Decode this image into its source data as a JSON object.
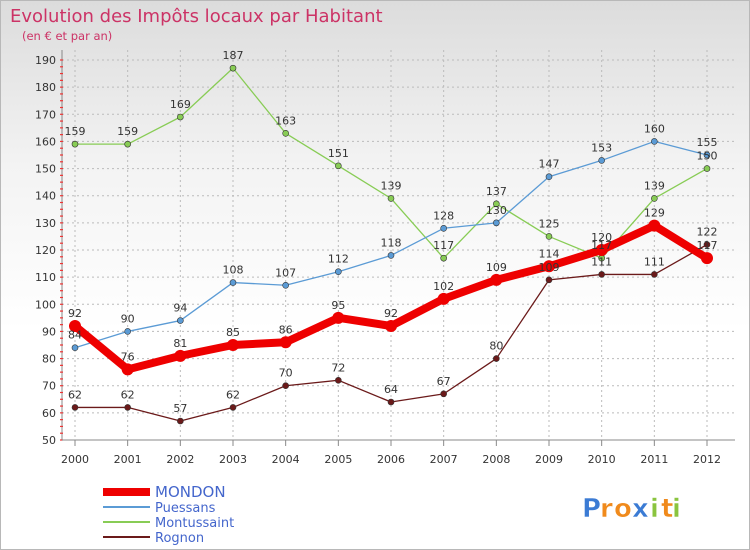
{
  "chart_data": {
    "type": "line",
    "title": "Evolution des Impôts locaux par Habitant",
    "subtitle": "(en € et par an)",
    "xlabel": "",
    "ylabel": "",
    "ylim": [
      50,
      190
    ],
    "yticks": [
      50,
      60,
      70,
      80,
      90,
      100,
      110,
      120,
      130,
      140,
      150,
      160,
      170,
      180,
      190
    ],
    "categories": [
      "2000",
      "2001",
      "2002",
      "2003",
      "2004",
      "2005",
      "2006",
      "2007",
      "2008",
      "2009",
      "2010",
      "2011",
      "2012"
    ],
    "grid": true,
    "legend_position": "bottom-left",
    "series": [
      {
        "name": "Rognon",
        "color": "#6b1a1a",
        "values": [
          62,
          62,
          57,
          62,
          70,
          72,
          64,
          67,
          80,
          109,
          111,
          111,
          122
        ]
      },
      {
        "name": "Montussaint",
        "color": "#88cc55",
        "values": [
          159,
          159,
          169,
          187,
          163,
          151,
          139,
          117,
          137,
          125,
          117,
          139,
          150
        ]
      },
      {
        "name": "Puessans",
        "color": "#5b9bd5",
        "values": [
          84,
          90,
          94,
          108,
          107,
          112,
          118,
          128,
          130,
          147,
          153,
          160,
          155
        ]
      },
      {
        "name": "MONDON",
        "color": "#ee0000",
        "bold": true,
        "values": [
          92,
          76,
          81,
          85,
          86,
          95,
          92,
          102,
          109,
          114,
          120,
          129,
          117
        ]
      }
    ],
    "legend_order": [
      "MONDON",
      "Puessans",
      "Montussaint",
      "Rognon"
    ]
  },
  "brand": {
    "text": "Proxiti",
    "letters": [
      "P",
      "r",
      "o",
      "x",
      "i",
      "t",
      "i"
    ],
    "colors": [
      "#3b7bd4",
      "#f08a1c",
      "#f08a1c",
      "#3b7bd4",
      "#8ac43f",
      "#f08a1c",
      "#8ac43f"
    ]
  },
  "colors": {
    "title": "#cc3366",
    "axis_text": "#333333",
    "legend_text": "#4466cc",
    "grid": "#bbbbbb"
  }
}
